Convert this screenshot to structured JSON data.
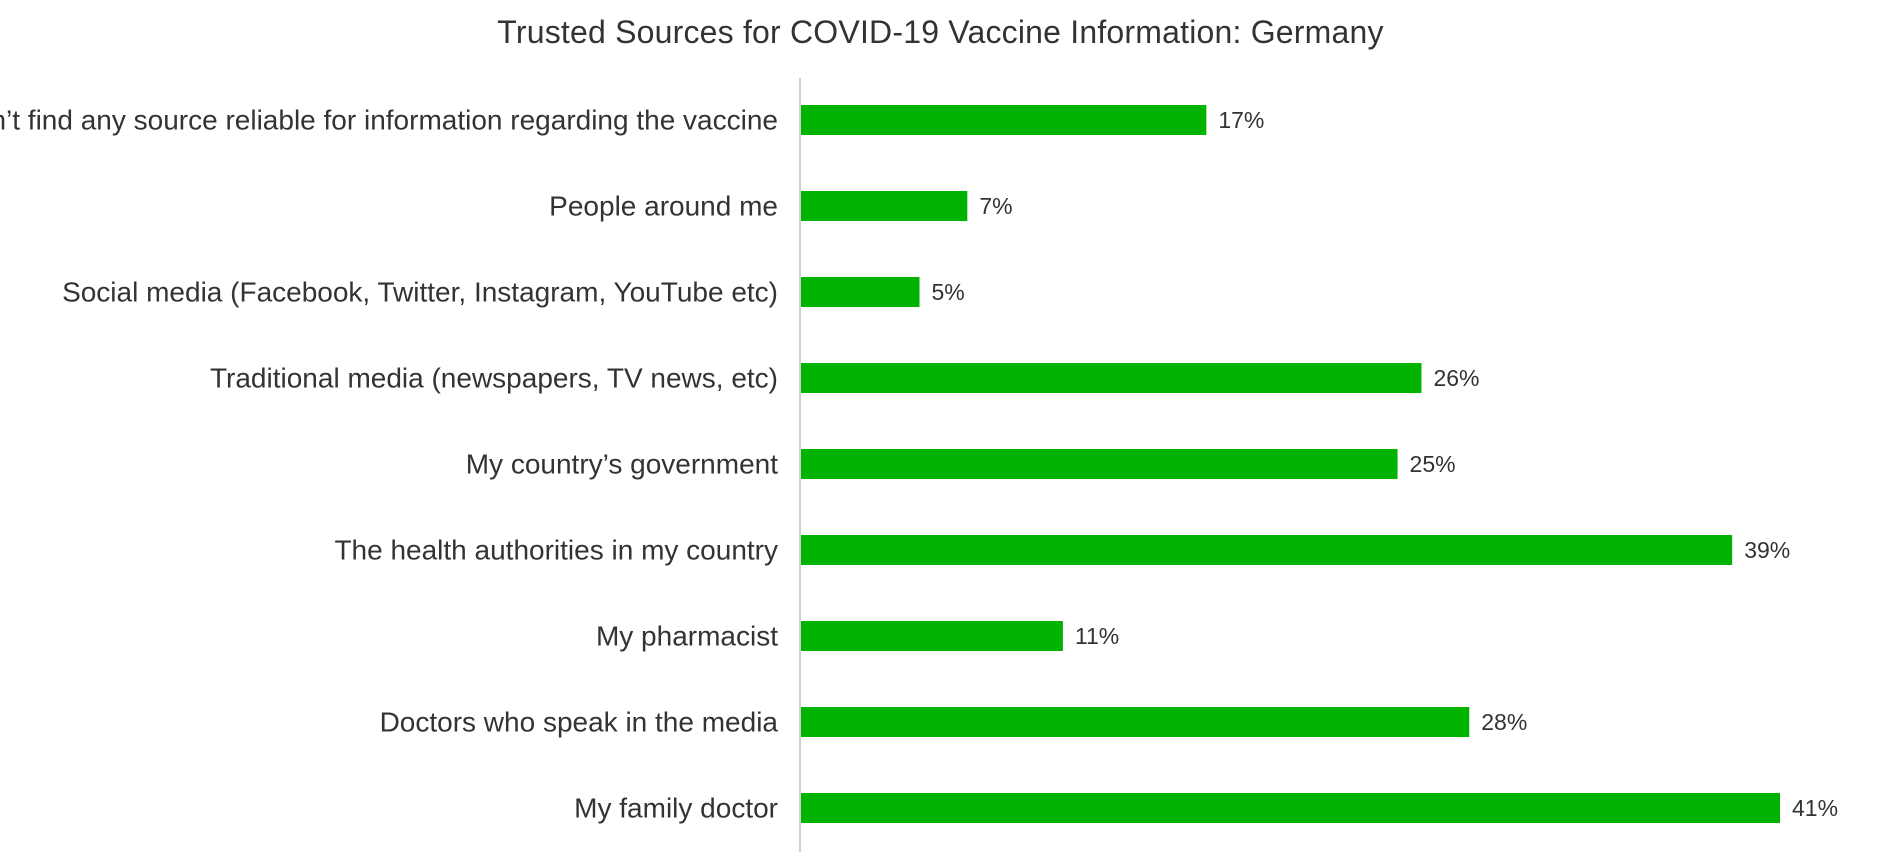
{
  "chart_data": {
    "type": "bar",
    "orientation": "horizontal",
    "title": "Trusted Sources for COVID-19 Vaccine Information: Germany",
    "categories": [
      "I don’t find any source reliable for information regarding the vaccine",
      "People around me",
      "Social media (Facebook, Twitter, Instagram, YouTube etc)",
      "Traditional media (newspapers, TV news, etc)",
      "My country’s government",
      "The health authorities in my country",
      "My pharmacist",
      "Doctors who speak in the media",
      "My family doctor"
    ],
    "values": [
      17,
      7,
      5,
      26,
      25,
      39,
      11,
      28,
      41
    ],
    "value_labels": [
      "17%",
      "7%",
      "5%",
      "26%",
      "25%",
      "39%",
      "11%",
      "28%",
      "41%"
    ],
    "xlim": [
      0,
      41
    ],
    "grid": false,
    "legend": "none",
    "bar_color": "#00b300",
    "axis_line_color": "#d0d0d0"
  }
}
